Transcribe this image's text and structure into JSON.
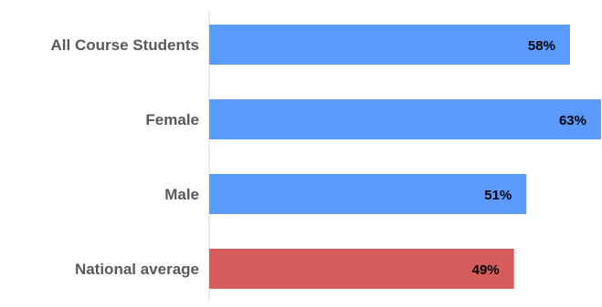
{
  "chart_data": {
    "type": "bar",
    "orientation": "horizontal",
    "categories": [
      "All Course Students",
      "Female",
      "Male",
      "National average"
    ],
    "values": [
      58,
      63,
      51,
      49
    ],
    "data_labels": [
      "58%",
      "63%",
      "51%",
      "49%"
    ],
    "xlim": [
      0,
      63
    ],
    "grid": false,
    "legend": "none",
    "colors": {
      "default_bar": "#5b9bff",
      "highlight_bar": "#d65c5c",
      "axis": "#d9d9d9",
      "category_text": "#595959",
      "data_label_text": "#000000"
    },
    "highlight_categories": [
      "National average"
    ]
  }
}
